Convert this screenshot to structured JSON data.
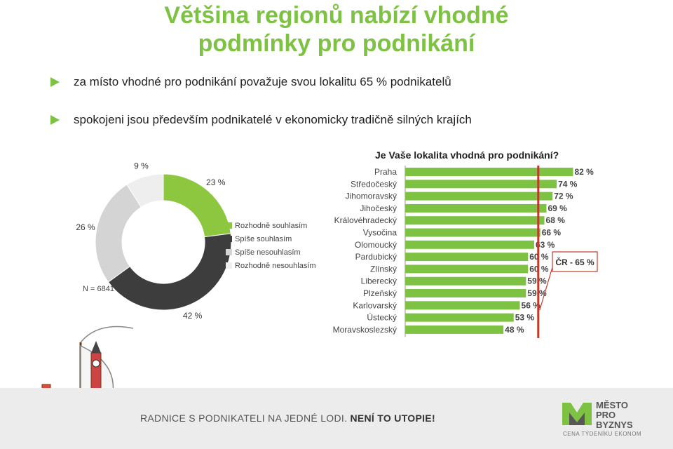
{
  "title_line1": "Většina regionů nabízí vhodné",
  "title_line2": "podmínky pro podnikání",
  "bullets": [
    "za místo vhodné pro podnikání považuje svou lokalitu 65 % podnikatelů",
    "spokojeni jsou především podnikatelé v ekonomicky tradičně silných krajích"
  ],
  "question": "Je Vaše lokalita vhodná pro podnikání?",
  "chart_data": [
    {
      "type": "pie",
      "note_text": "N = 6841",
      "slices": [
        {
          "label": "Rozhodně souhlasím",
          "value": 23,
          "value_label": "23 %",
          "color": "#8dc63f"
        },
        {
          "label": "Spíše souhlasím",
          "value": 42,
          "value_label": "42 %",
          "color": "#3d3d3d"
        },
        {
          "label": "Spíše nesouhlasím",
          "value": 26,
          "value_label": "26 %",
          "color": "#d4d4d4"
        },
        {
          "label": "Rozhodně nesouhlasím",
          "value": 9,
          "value_label": "9 %",
          "color": "#eeeeee"
        }
      ]
    },
    {
      "type": "bar",
      "orientation": "horizontal",
      "categories": [
        "Praha",
        "Středočeský",
        "Jihomoravský",
        "Jihočeský",
        "Královéhradecký",
        "Vysočina",
        "Olomoucký",
        "Pardubický",
        "Zlínský",
        "Liberecký",
        "Plzeňský",
        "Karlovarský",
        "Ústecký",
        "Moravskoslezský"
      ],
      "values": [
        82,
        74,
        72,
        69,
        68,
        66,
        63,
        60,
        60,
        59,
        59,
        56,
        53,
        48
      ],
      "value_labels": [
        "82 %",
        "74 %",
        "72 %",
        "69 %",
        "68 %",
        "66 %",
        "63 %",
        "60 %",
        "60 %",
        "59 %",
        "59 %",
        "56 %",
        "53 %",
        "48 %"
      ],
      "xlim": [
        0,
        100
      ],
      "reference_value": 65,
      "reference_label": "ČR - 65 %",
      "bar_color": "#7dc242",
      "reference_color": "#c0392b"
    }
  ],
  "footer": {
    "text_plain": "RADNICE S PODNIKATELI NA JEDNÉ LODI. ",
    "text_bold": "NENÍ TO UTOPIE!",
    "logo_lines": [
      "MĚSTO",
      "PRO",
      "BYZNYS"
    ],
    "logo_sub": "CENA TÝDENÍKU EKONOM"
  }
}
